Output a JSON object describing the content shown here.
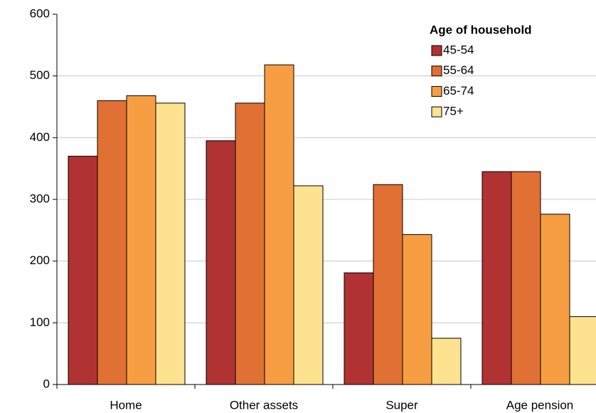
{
  "chart_data": {
    "type": "bar",
    "categories": [
      "Home",
      "Other assets",
      "Super",
      "Age pension"
    ],
    "series": [
      {
        "name": "45-54",
        "color": "#b13232",
        "values": [
          370,
          395,
          181,
          345
        ]
      },
      {
        "name": "55-64",
        "color": "#e07033",
        "values": [
          460,
          456,
          324,
          345
        ]
      },
      {
        "name": "65-74",
        "color": "#f79e42",
        "values": [
          468,
          518,
          243,
          276
        ]
      },
      {
        "name": "75+",
        "color": "#fde28f",
        "values": [
          456,
          322,
          75,
          110
        ]
      }
    ],
    "ylim": [
      0,
      600
    ],
    "yticks": [
      0,
      100,
      200,
      300,
      400,
      500,
      600
    ],
    "grid": true,
    "legend_title": "Age of household",
    "legend": "upper right"
  }
}
